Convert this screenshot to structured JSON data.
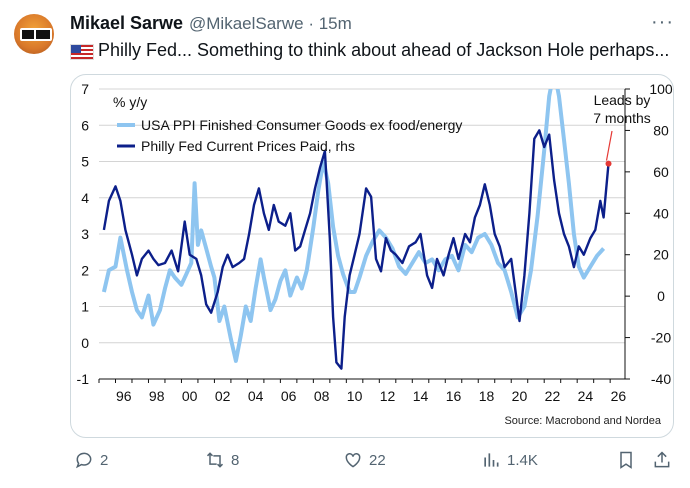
{
  "tweet": {
    "author": "Mikael Sarwe",
    "handle": "@MikaelSarwe",
    "dot": "·",
    "time": "15m",
    "text": "Philly Fed... Something to think about ahead of Jackson Hole perhaps...",
    "more_icon": "more-icon"
  },
  "actions": {
    "replies": "2",
    "retweets": "8",
    "likes": "22",
    "views": "1.4K"
  },
  "chart_data": {
    "type": "line",
    "ylabel": "% y/y",
    "y_left_ticks": [
      "7",
      "6",
      "5",
      "4",
      "3",
      "2",
      "1",
      "0",
      "-1"
    ],
    "y_right_ticks": [
      "100",
      "80",
      "60",
      "40",
      "20",
      "0",
      "-20",
      "-40"
    ],
    "x_ticks": [
      "96",
      "98",
      "00",
      "02",
      "04",
      "06",
      "08",
      "10",
      "12",
      "14",
      "16",
      "18",
      "20",
      "22",
      "24",
      "26"
    ],
    "ylim_left": [
      -1,
      7
    ],
    "ylim_right": [
      -40,
      100
    ],
    "annotation": "Leads by\n7 months",
    "annotation_line1": "Leads by",
    "annotation_line2": "7 months",
    "source": "Source: Macrobond and Nordea",
    "grid": true,
    "legend_position": "top-left",
    "series": [
      {
        "name": "USA PPI Finished Consumer Goods ex food/energy",
        "axis": "left",
        "color": "#8ec5f0",
        "points": [
          [
            1995.3,
            1.4
          ],
          [
            1995.6,
            2.0
          ],
          [
            1996.0,
            2.1
          ],
          [
            1996.3,
            2.9
          ],
          [
            1996.7,
            2.0
          ],
          [
            1997.0,
            1.4
          ],
          [
            1997.3,
            0.9
          ],
          [
            1997.6,
            0.7
          ],
          [
            1998.0,
            1.3
          ],
          [
            1998.3,
            0.5
          ],
          [
            1998.7,
            0.9
          ],
          [
            1999.0,
            1.5
          ],
          [
            1999.3,
            2.0
          ],
          [
            1999.6,
            1.8
          ],
          [
            2000.0,
            1.6
          ],
          [
            2000.3,
            1.9
          ],
          [
            2000.6,
            2.2
          ],
          [
            2000.8,
            4.4
          ],
          [
            2001.0,
            2.7
          ],
          [
            2001.2,
            3.1
          ],
          [
            2001.5,
            2.6
          ],
          [
            2001.8,
            2.1
          ],
          [
            2002.0,
            1.8
          ],
          [
            2002.3,
            0.6
          ],
          [
            2002.6,
            1.0
          ],
          [
            2003.0,
            0.1
          ],
          [
            2003.3,
            -0.5
          ],
          [
            2003.6,
            0.2
          ],
          [
            2003.9,
            1.0
          ],
          [
            2004.2,
            0.6
          ],
          [
            2004.5,
            1.5
          ],
          [
            2004.8,
            2.3
          ],
          [
            2005.0,
            1.8
          ],
          [
            2005.4,
            0.9
          ],
          [
            2005.7,
            1.2
          ],
          [
            2006.0,
            1.7
          ],
          [
            2006.3,
            2.0
          ],
          [
            2006.6,
            1.3
          ],
          [
            2007.0,
            1.8
          ],
          [
            2007.3,
            1.5
          ],
          [
            2007.6,
            2.0
          ],
          [
            2008.0,
            3.2
          ],
          [
            2008.3,
            4.2
          ],
          [
            2008.6,
            5.0
          ],
          [
            2008.9,
            4.4
          ],
          [
            2009.2,
            3.2
          ],
          [
            2009.5,
            2.4
          ],
          [
            2009.8,
            1.9
          ],
          [
            2010.2,
            1.4
          ],
          [
            2010.5,
            1.4
          ],
          [
            2010.8,
            1.8
          ],
          [
            2011.2,
            2.4
          ],
          [
            2011.6,
            2.8
          ],
          [
            2012.0,
            3.1
          ],
          [
            2012.4,
            2.9
          ],
          [
            2012.8,
            2.6
          ],
          [
            2013.2,
            2.1
          ],
          [
            2013.6,
            1.9
          ],
          [
            2014.0,
            2.2
          ],
          [
            2014.4,
            2.5
          ],
          [
            2014.8,
            2.2
          ],
          [
            2015.2,
            2.3
          ],
          [
            2015.6,
            2.0
          ],
          [
            2016.0,
            2.3
          ],
          [
            2016.4,
            2.4
          ],
          [
            2016.8,
            2.0
          ],
          [
            2017.2,
            2.7
          ],
          [
            2017.6,
            2.5
          ],
          [
            2018.0,
            2.9
          ],
          [
            2018.4,
            3.0
          ],
          [
            2018.8,
            2.7
          ],
          [
            2019.2,
            2.2
          ],
          [
            2019.6,
            2.0
          ],
          [
            2020.0,
            1.4
          ],
          [
            2020.4,
            0.7
          ],
          [
            2020.8,
            1.0
          ],
          [
            2021.2,
            2.0
          ],
          [
            2021.6,
            3.5
          ],
          [
            2022.0,
            5.3
          ],
          [
            2022.3,
            6.8
          ],
          [
            2022.6,
            7.5
          ],
          [
            2022.9,
            6.8
          ],
          [
            2023.2,
            5.6
          ],
          [
            2023.5,
            4.4
          ],
          [
            2023.8,
            3.0
          ],
          [
            2024.1,
            2.1
          ],
          [
            2024.4,
            1.8
          ],
          [
            2024.8,
            2.1
          ],
          [
            2025.2,
            2.4
          ],
          [
            2025.6,
            2.6
          ]
        ]
      },
      {
        "name": "Philly Fed Current Prices Paid, rhs",
        "axis": "right",
        "color": "#0c1f8a",
        "points": [
          [
            1995.3,
            32
          ],
          [
            1995.6,
            46
          ],
          [
            1996.0,
            53
          ],
          [
            1996.3,
            46
          ],
          [
            1996.6,
            32
          ],
          [
            1997.0,
            20
          ],
          [
            1997.3,
            10
          ],
          [
            1997.6,
            18
          ],
          [
            1998.0,
            22
          ],
          [
            1998.3,
            18
          ],
          [
            1998.6,
            15
          ],
          [
            1999.0,
            16
          ],
          [
            1999.4,
            22
          ],
          [
            1999.8,
            12
          ],
          [
            2000.2,
            36
          ],
          [
            2000.5,
            20
          ],
          [
            2000.9,
            18
          ],
          [
            2001.2,
            10
          ],
          [
            2001.5,
            -4
          ],
          [
            2001.8,
            -8
          ],
          [
            2002.2,
            2
          ],
          [
            2002.5,
            14
          ],
          [
            2002.8,
            20
          ],
          [
            2003.1,
            14
          ],
          [
            2003.5,
            16
          ],
          [
            2003.8,
            18
          ],
          [
            2004.1,
            30
          ],
          [
            2004.4,
            44
          ],
          [
            2004.7,
            52
          ],
          [
            2005.0,
            40
          ],
          [
            2005.3,
            32
          ],
          [
            2005.6,
            44
          ],
          [
            2005.9,
            36
          ],
          [
            2006.3,
            34
          ],
          [
            2006.6,
            40
          ],
          [
            2006.9,
            22
          ],
          [
            2007.2,
            24
          ],
          [
            2007.5,
            32
          ],
          [
            2007.8,
            40
          ],
          [
            2008.1,
            52
          ],
          [
            2008.4,
            62
          ],
          [
            2008.7,
            70
          ],
          [
            2009.0,
            28
          ],
          [
            2009.2,
            -10
          ],
          [
            2009.4,
            -32
          ],
          [
            2009.7,
            -35
          ],
          [
            2009.9,
            -10
          ],
          [
            2010.2,
            10
          ],
          [
            2010.5,
            20
          ],
          [
            2010.8,
            30
          ],
          [
            2011.2,
            52
          ],
          [
            2011.5,
            48
          ],
          [
            2011.8,
            18
          ],
          [
            2012.1,
            12
          ],
          [
            2012.4,
            28
          ],
          [
            2012.7,
            22
          ],
          [
            2013.0,
            20
          ],
          [
            2013.4,
            16
          ],
          [
            2013.8,
            24
          ],
          [
            2014.2,
            26
          ],
          [
            2014.5,
            30
          ],
          [
            2014.9,
            10
          ],
          [
            2015.2,
            4
          ],
          [
            2015.5,
            18
          ],
          [
            2015.9,
            10
          ],
          [
            2016.2,
            20
          ],
          [
            2016.5,
            28
          ],
          [
            2016.8,
            18
          ],
          [
            2017.2,
            30
          ],
          [
            2017.5,
            26
          ],
          [
            2017.8,
            38
          ],
          [
            2018.1,
            44
          ],
          [
            2018.4,
            54
          ],
          [
            2018.7,
            44
          ],
          [
            2019.0,
            30
          ],
          [
            2019.3,
            24
          ],
          [
            2019.6,
            14
          ],
          [
            2020.0,
            18
          ],
          [
            2020.2,
            6
          ],
          [
            2020.5,
            -12
          ],
          [
            2020.8,
            10
          ],
          [
            2021.1,
            40
          ],
          [
            2021.4,
            76
          ],
          [
            2021.7,
            80
          ],
          [
            2022.0,
            72
          ],
          [
            2022.3,
            78
          ],
          [
            2022.6,
            56
          ],
          [
            2022.9,
            40
          ],
          [
            2023.2,
            30
          ],
          [
            2023.5,
            24
          ],
          [
            2023.8,
            14
          ],
          [
            2024.1,
            24
          ],
          [
            2024.4,
            20
          ],
          [
            2024.8,
            28
          ],
          [
            2025.1,
            32
          ],
          [
            2025.4,
            46
          ],
          [
            2025.6,
            38
          ],
          [
            2025.9,
            64
          ]
        ]
      }
    ]
  }
}
